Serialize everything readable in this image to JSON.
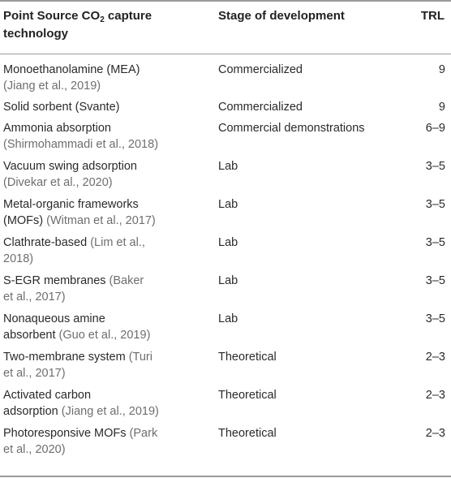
{
  "header": {
    "col1_pre": "Point Source CO",
    "col1_sub": "2",
    "col1_post": " capture technology",
    "col2": "Stage of development",
    "col3": "TRL"
  },
  "rows": [
    {
      "tech": "Monoethanolamine (MEA)",
      "cite": "Jiang et al., 2019",
      "stage": "Commercialized",
      "trl": "9"
    },
    {
      "tech": "Solid sorbent (Svante)",
      "cite": "",
      "stage": "Commercialized",
      "trl": "9"
    },
    {
      "tech": "Ammonia absorption",
      "cite": "Shirmohammadi et al., 2018",
      "stage": "Commercial demonstrations",
      "trl": "6–9"
    },
    {
      "tech": "Vacuum swing adsorption",
      "cite": "Divekar et al., 2020",
      "stage": "Lab",
      "trl": "3–5"
    },
    {
      "tech": "Metal-organic frameworks (MOFs)",
      "cite": "Witman et al., 2017",
      "stage": "Lab",
      "trl": "3–5"
    },
    {
      "tech": "Clathrate-based",
      "cite": "Lim et al., 2018",
      "stage": "Lab",
      "trl": "3–5"
    },
    {
      "tech": "S-EGR membranes",
      "cite": "Baker et al., 2017",
      "stage": "Lab",
      "trl": "3–5"
    },
    {
      "tech": "Nonaqueous amine absorbent",
      "cite": "Guo et al., 2019",
      "stage": "Lab",
      "trl": "3–5"
    },
    {
      "tech": "Two-membrane system",
      "cite": "Turi et al., 2017",
      "stage": "Theoretical",
      "trl": "2–3"
    },
    {
      "tech": "Activated carbon adsorption",
      "cite": "Jiang et al., 2019",
      "stage": "Theoretical",
      "trl": "2–3"
    },
    {
      "tech": "Photoresponsive MOFs",
      "cite": "Park et al., 2020",
      "stage": "Theoretical",
      "trl": "2–3"
    }
  ]
}
